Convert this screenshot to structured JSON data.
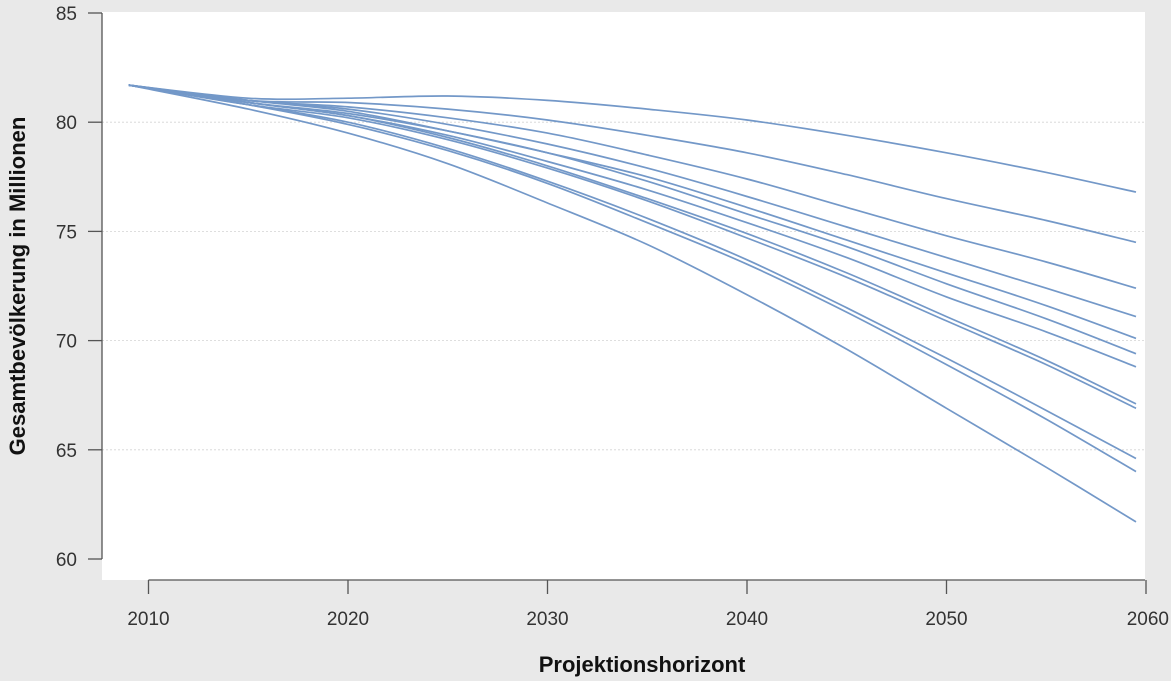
{
  "colors": {
    "series": "#7398c8",
    "plot_background": "#ffffff",
    "page_background": "#e9e9e9"
  },
  "chart_data": {
    "type": "line",
    "xlabel": "Projektionshorizont",
    "ylabel": "Gesamtbevölkerung in Millionen",
    "xlim": [
      2008,
      2060
    ],
    "ylim": [
      60,
      85
    ],
    "xticks": [
      2010,
      2020,
      2030,
      2040,
      2050,
      2060
    ],
    "yticks": [
      60,
      65,
      70,
      75,
      80,
      85
    ],
    "grid": true,
    "legend": "none",
    "series": [
      {
        "x": [
          2009,
          2015,
          2020,
          2025,
          2030,
          2035,
          2040,
          2045,
          2050,
          2055,
          2059.5
        ],
        "values": [
          81.7,
          81.1,
          81.1,
          81.2,
          81.0,
          80.6,
          80.1,
          79.4,
          78.6,
          77.7,
          76.8
        ]
      },
      {
        "x": [
          2009,
          2015,
          2020,
          2025,
          2030,
          2035,
          2040,
          2045,
          2050,
          2055,
          2059.5
        ],
        "values": [
          81.7,
          81.0,
          80.9,
          80.6,
          80.1,
          79.4,
          78.6,
          77.6,
          76.5,
          75.5,
          74.5
        ]
      },
      {
        "x": [
          2009,
          2015,
          2020,
          2025,
          2030,
          2035,
          2040,
          2045,
          2050,
          2055,
          2059.5
        ],
        "values": [
          81.7,
          81.0,
          80.7,
          80.2,
          79.5,
          78.5,
          77.4,
          76.1,
          74.8,
          73.6,
          72.4
        ]
      },
      {
        "x": [
          2009,
          2015,
          2020,
          2025,
          2030,
          2035,
          2040,
          2045,
          2050,
          2055,
          2059.5
        ],
        "values": [
          81.7,
          81.0,
          80.6,
          79.9,
          79.0,
          77.9,
          76.6,
          75.2,
          73.8,
          72.4,
          71.1
        ]
      },
      {
        "x": [
          2009,
          2015,
          2020,
          2025,
          2030,
          2035,
          2040,
          2045,
          2050,
          2055,
          2059.5
        ],
        "values": [
          81.7,
          81.0,
          80.5,
          79.6,
          78.6,
          77.5,
          76.1,
          74.6,
          73.1,
          71.6,
          70.1
        ]
      },
      {
        "x": [
          2009,
          2015,
          2020,
          2025,
          2030,
          2035,
          2040,
          2045,
          2050,
          2055,
          2059.5
        ],
        "values": [
          81.7,
          80.9,
          80.4,
          79.6,
          78.6,
          77.3,
          75.8,
          74.3,
          72.6,
          71.0,
          69.4
        ]
      },
      {
        "x": [
          2009,
          2015,
          2020,
          2025,
          2030,
          2035,
          2040,
          2045,
          2050,
          2055,
          2059.5
        ],
        "values": [
          81.7,
          80.9,
          80.3,
          79.4,
          78.2,
          76.9,
          75.4,
          73.8,
          72.0,
          70.4,
          68.8
        ]
      },
      {
        "x": [
          2009,
          2015,
          2020,
          2025,
          2030,
          2035,
          2040,
          2045,
          2050,
          2055,
          2059.5
        ],
        "values": [
          81.7,
          80.9,
          80.3,
          79.3,
          78.0,
          76.5,
          74.9,
          73.1,
          71.1,
          69.1,
          67.1
        ]
      },
      {
        "x": [
          2009,
          2015,
          2020,
          2025,
          2030,
          2035,
          2040,
          2045,
          2050,
          2055,
          2059.5
        ],
        "values": [
          81.7,
          80.8,
          80.2,
          79.2,
          77.9,
          76.4,
          74.7,
          72.9,
          70.9,
          68.9,
          66.9
        ]
      },
      {
        "x": [
          2009,
          2015,
          2020,
          2025,
          2030,
          2035,
          2040,
          2045,
          2050,
          2055,
          2059.5
        ],
        "values": [
          81.7,
          80.8,
          80.0,
          78.8,
          77.3,
          75.6,
          73.7,
          71.5,
          69.2,
          66.8,
          64.6
        ]
      },
      {
        "x": [
          2009,
          2015,
          2020,
          2025,
          2030,
          2035,
          2040,
          2045,
          2050,
          2055,
          2059.5
        ],
        "values": [
          81.7,
          80.8,
          79.9,
          78.7,
          77.2,
          75.4,
          73.5,
          71.3,
          68.9,
          66.4,
          64.0
        ]
      },
      {
        "x": [
          2009,
          2015,
          2020,
          2025,
          2030,
          2035,
          2040,
          2045,
          2050,
          2055,
          2059.5
        ],
        "values": [
          81.7,
          80.6,
          79.5,
          78.1,
          76.3,
          74.4,
          72.1,
          69.6,
          66.9,
          64.2,
          61.7
        ]
      }
    ]
  }
}
